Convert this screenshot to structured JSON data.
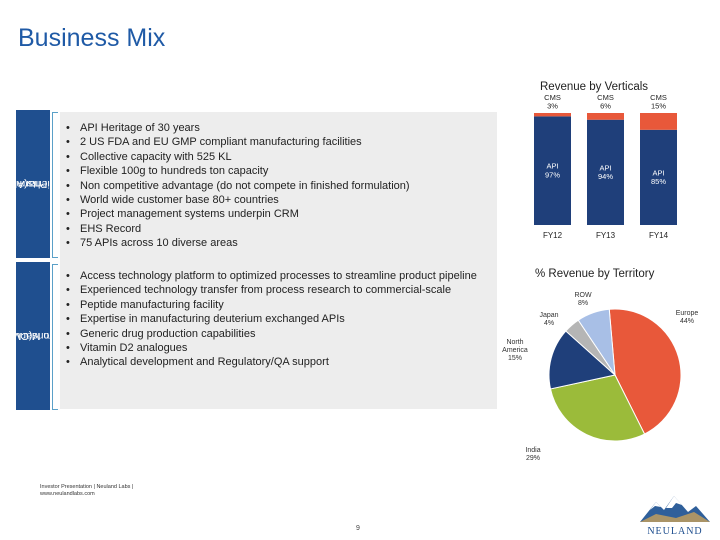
{
  "title": "Business Mix",
  "sections": [
    {
      "label": "Active Pharmaceutical Ingredients(APIs)",
      "label_lines": [
        "Active Pharmaceutical",
        "Ingredients(APIs)"
      ],
      "bullets": [
        "API Heritage of 30 years",
        "2 US FDA and EU GMP compliant manufacturing facilities",
        "Collective capacity with 525 KL",
        "Flexible 100g to hundreds ton capacity",
        "Non competitive advantage (do not compete in finished formulation)",
        "World wide customer base 80+ countries",
        "Project management systems underpin CRM",
        "EHS Record",
        "75 APIs across 10 diverse areas"
      ]
    },
    {
      "label": "Custom Manufacturing Solutions(CMS)",
      "label_lines": [
        "Custom Manufacturing",
        "Solutions(CMS)"
      ],
      "bullets": [
        "Access technology platform to optimized processes to streamline product pipeline",
        "Experienced technology transfer from process research to commercial-scale",
        "Peptide manufacturing facility",
        "Expertise in manufacturing deuterium exchanged APIs",
        "Generic drug production capabilities",
        "Vitamin D2 analogues",
        "Analytical development and Regulatory/QA support"
      ]
    }
  ],
  "chart_data": [
    {
      "type": "bar",
      "title": "Revenue by Verticals",
      "categories": [
        "FY12",
        "FY13",
        "FY14"
      ],
      "series": [
        {
          "name": "API",
          "values": [
            97,
            94,
            85
          ],
          "labels": [
            "API\n97%",
            "API\n94%",
            "API\n85%"
          ]
        },
        {
          "name": "CMS",
          "values": [
            3,
            6,
            15
          ],
          "labels": [
            "CMS\n3%",
            "CMS\n6%",
            "CMS\n15%"
          ]
        }
      ],
      "colors": {
        "API": "#1f3f7a",
        "CMS": "#e8583a"
      }
    },
    {
      "type": "pie",
      "title": "% Revenue by Territory",
      "slices": [
        {
          "name": "Europe",
          "value": 44,
          "label": "Europe\n44%",
          "color": "#e8583a"
        },
        {
          "name": "India",
          "value": 29,
          "label": "India\n29%",
          "color": "#9bbb3a"
        },
        {
          "name": "North America",
          "value": 15,
          "label": "North\nAmerica\n15%",
          "color": "#1f3f7a"
        },
        {
          "name": "Japan",
          "value": 4,
          "label": "Japan\n4%",
          "color": "#b5b5b5"
        },
        {
          "name": "ROW",
          "value": 8,
          "label": "ROW\n8%",
          "color": "#a8bfe6"
        }
      ]
    }
  ],
  "footer": {
    "line1": "Investor Presentation | Neuland Labs |",
    "line2": "www.neulandlabs.com"
  },
  "page_number": "9",
  "logo": {
    "text": "NEULAND",
    "icon": "mountain-logo-icon"
  }
}
